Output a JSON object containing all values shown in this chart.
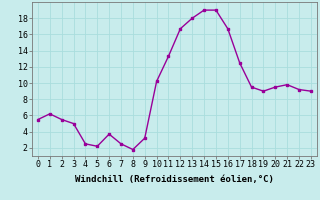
{
  "x": [
    0,
    1,
    2,
    3,
    4,
    5,
    6,
    7,
    8,
    9,
    10,
    11,
    12,
    13,
    14,
    15,
    16,
    17,
    18,
    19,
    20,
    21,
    22,
    23
  ],
  "y": [
    5.5,
    6.2,
    5.5,
    5.0,
    2.5,
    2.2,
    3.7,
    2.5,
    1.8,
    3.2,
    10.2,
    13.3,
    16.7,
    18.0,
    19.0,
    19.0,
    16.7,
    12.5,
    9.5,
    9.0,
    9.5,
    9.8,
    9.2,
    9.0
  ],
  "line_color": "#990099",
  "marker": "s",
  "marker_size": 2.0,
  "linewidth": 1.0,
  "xlabel": "Windchill (Refroidissement éolien,°C)",
  "xlabel_fontsize": 6.5,
  "background_color": "#c8ecec",
  "grid_color": "#aadddd",
  "tick_fontsize": 6.0,
  "ylim": [
    1,
    20
  ],
  "yticks": [
    2,
    4,
    6,
    8,
    10,
    12,
    14,
    16,
    18
  ],
  "xticks": [
    0,
    1,
    2,
    3,
    4,
    5,
    6,
    7,
    8,
    9,
    10,
    11,
    12,
    13,
    14,
    15,
    16,
    17,
    18,
    19,
    20,
    21,
    22,
    23
  ]
}
